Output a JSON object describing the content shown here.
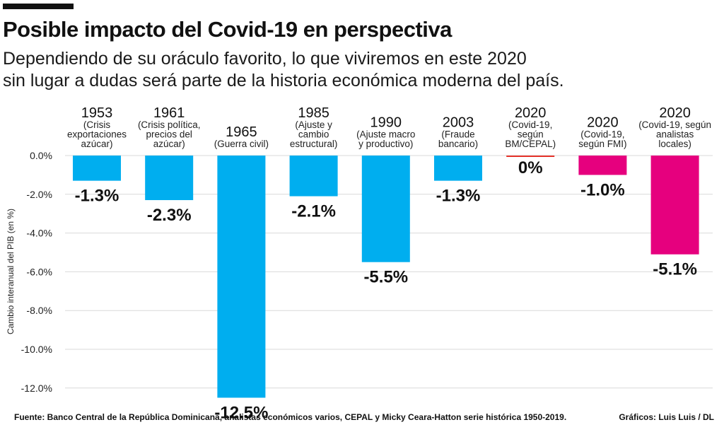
{
  "header": {
    "title": "Posible impacto del Covid-19  en perspectiva",
    "subtitle_lines": [
      "Dependiendo de su oráculo favorito, lo que viviremos en este 2020",
      "sin lugar a dudas será parte de la historia económica moderna del país."
    ]
  },
  "footer": {
    "source": "Fuente:  Banco Central de la República Dominicana, analistas económicos varios, CEPAL y Micky Ceara-Hatton serie histórica 1950-2019.",
    "credits": "Gráficos: Luis Luis / DL"
  },
  "colors": {
    "historical": "#00AEEF",
    "covid": "#E6007E",
    "zero_line": "#E5332A"
  },
  "chart_data": {
    "type": "bar",
    "ylabel": "Cambio interanual del PIB (en %)",
    "ylim": [
      -12.5,
      0
    ],
    "yticks": [
      0,
      -2,
      -4,
      -6,
      -8,
      -10,
      -12
    ],
    "ytick_labels": [
      "0.0%",
      "-2.0%",
      "-4.0%",
      "-6.0%",
      "-8.0%",
      "-10.0%",
      "-12.0%"
    ],
    "grid": true,
    "bars": [
      {
        "year": "1953",
        "desc": [
          "(Crisis",
          "exportaciones",
          "azúcar)"
        ],
        "value": -1.3,
        "label": "-1.3%",
        "group": "historical"
      },
      {
        "year": "1961",
        "desc": [
          "(Crisis política,",
          "precios del",
          "azúcar)"
        ],
        "value": -2.3,
        "label": "-2.3%",
        "group": "historical"
      },
      {
        "year": "1965",
        "desc": [
          "(Guerra civil)"
        ],
        "value": -12.5,
        "label": "-12.5%",
        "group": "historical"
      },
      {
        "year": "1985",
        "desc": [
          "(Ajuste y",
          "cambio",
          "estructural)"
        ],
        "value": -2.1,
        "label": "-2.1%",
        "group": "historical"
      },
      {
        "year": "1990",
        "desc": [
          "(Ajuste macro",
          "y productivo)"
        ],
        "value": -5.5,
        "label": "-5.5%",
        "group": "historical"
      },
      {
        "year": "2003",
        "desc": [
          "(Fraude",
          "bancario)"
        ],
        "value": -1.3,
        "label": "-1.3%",
        "group": "historical"
      },
      {
        "year": "2020",
        "desc": [
          "(Covid-19,",
          "según",
          "BM/CEPAL)"
        ],
        "value": 0,
        "label": "0%",
        "group": "zero"
      },
      {
        "year": "2020",
        "desc": [
          "(Covid-19,",
          "según FMI)"
        ],
        "value": -1.0,
        "label": "-1.0%",
        "group": "covid"
      },
      {
        "year": "2020",
        "desc": [
          "(Covid-19, según",
          "analistas",
          "locales)"
        ],
        "value": -5.1,
        "label": "-5.1%",
        "group": "covid"
      }
    ]
  }
}
